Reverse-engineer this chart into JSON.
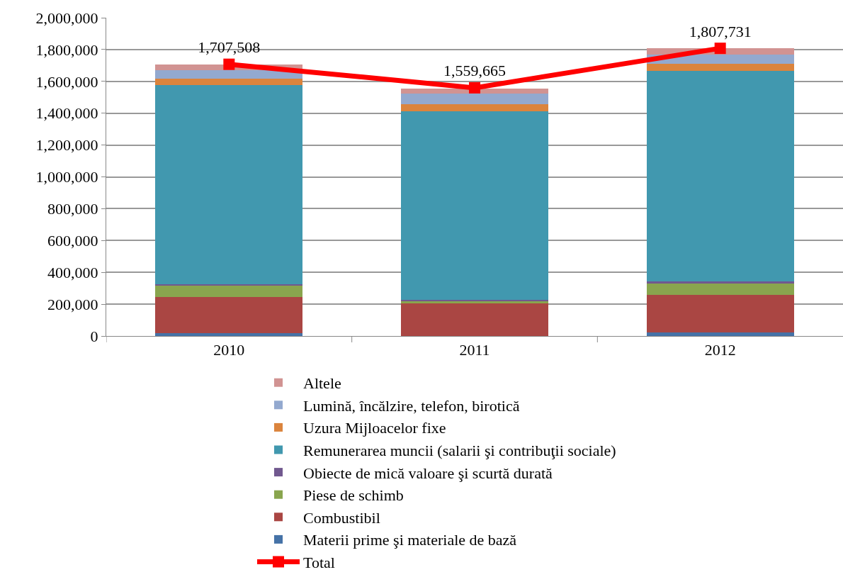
{
  "chart_data": {
    "type": "bar",
    "stacked": true,
    "categories": [
      "2010",
      "2011",
      "2012"
    ],
    "ylim": [
      0,
      2000000
    ],
    "yticks": [
      {
        "value": 0,
        "label": "0"
      },
      {
        "value": 200000,
        "label": "200,000"
      },
      {
        "value": 400000,
        "label": "400,000"
      },
      {
        "value": 600000,
        "label": "600,000"
      },
      {
        "value": 800000,
        "label": "800,000"
      },
      {
        "value": 1000000,
        "label": "1,000,000"
      },
      {
        "value": 1200000,
        "label": "1,200,000"
      },
      {
        "value": 1400000,
        "label": "1,400,000"
      },
      {
        "value": 1600000,
        "label": "1,600,000"
      },
      {
        "value": 1800000,
        "label": "1,800,000"
      },
      {
        "value": 2000000,
        "label": "2,000,000"
      }
    ],
    "grid": "y",
    "legend": "bottom",
    "series": [
      {
        "name": "Total",
        "type": "line",
        "color": "#ff0000",
        "marker": "square",
        "values": [
          1707508,
          1559665,
          1807731
        ],
        "value_labels": [
          "1,707,508",
          "1,559,665",
          "1,807,731"
        ]
      },
      {
        "name": "Materii prime şi materiale de bază",
        "color": "#4572a7",
        "values": [
          20000,
          null,
          21000
        ]
      },
      {
        "name": "Combustibil",
        "color": "#aa4643",
        "values": [
          226000,
          205000,
          239000
        ]
      },
      {
        "name": "Piese de schimb",
        "color": "#89a54e",
        "values": [
          72000,
          17000,
          73000
        ]
      },
      {
        "name": "Obiecte de mică valoare şi scurtă durată",
        "color": "#71588f",
        "values": [
          5000,
          5000,
          8000
        ]
      },
      {
        "name": "Remunerarea muncii (salarii şi contribuţii sociale)",
        "color": "#4198af",
        "values": [
          1252000,
          1187000,
          1325000
        ]
      },
      {
        "name": "Uzura Mijloacelor fixe",
        "color": "#db843d",
        "values": [
          40000,
          44000,
          44000
        ]
      },
      {
        "name": "Lumină, încălzire, telefon, birotică",
        "color": "#93a9cf",
        "values": [
          57000,
          65000,
          60000
        ]
      },
      {
        "name": "Altele",
        "color": "#d19392",
        "values": [
          35000,
          32000,
          38000
        ]
      }
    ]
  }
}
